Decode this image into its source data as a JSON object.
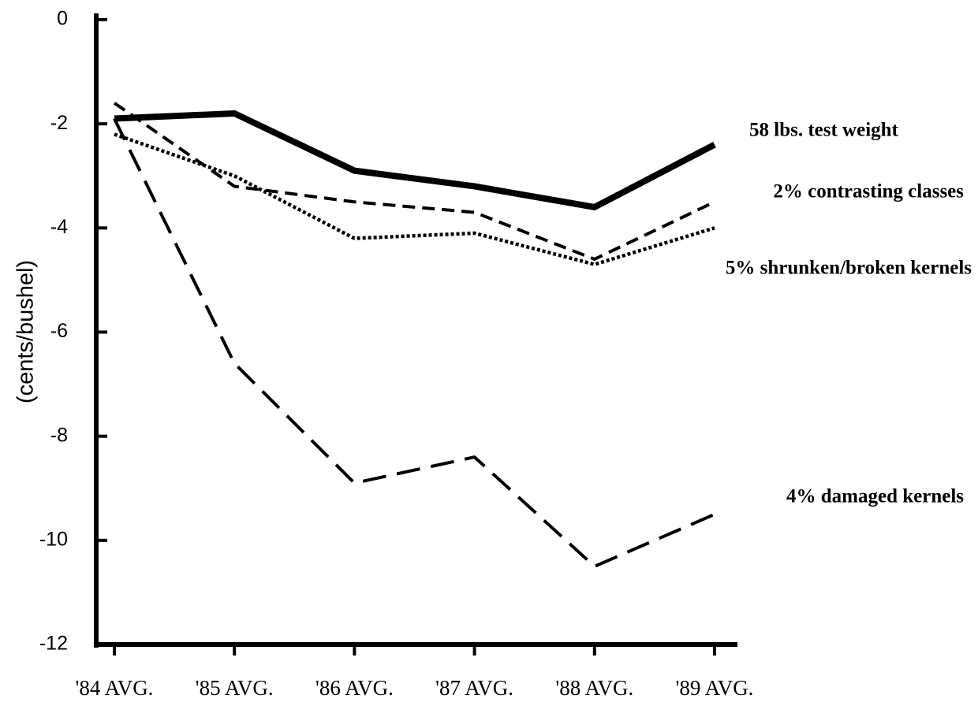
{
  "chart_data": {
    "type": "line",
    "y_label": "(cents/bushel)",
    "categories": [
      "'84 AVG.",
      "'85 AVG.",
      "'86 AVG.",
      "'87 AVG.",
      "'88 AVG.",
      "'89 AVG."
    ],
    "ylim": [
      -12,
      0
    ],
    "yticks": [
      0,
      -2,
      -4,
      -6,
      -8,
      -10,
      -12
    ],
    "series": [
      {
        "name": "58 lbs. test weight",
        "color": "#000000",
        "dash": "solid",
        "values": [
          -1.9,
          -1.8,
          -2.9,
          -3.2,
          -3.6,
          -2.4
        ]
      },
      {
        "name": "2% contrasting classes",
        "color": "#000000",
        "dash": "dashed",
        "values": [
          -1.6,
          -3.2,
          -3.5,
          -3.7,
          -4.6,
          -3.5
        ]
      },
      {
        "name": "5% shrunken/broken kernels",
        "color": "#000000",
        "dash": "dotted",
        "values": [
          -2.2,
          -3.0,
          -4.2,
          -4.1,
          -4.7,
          -4.0
        ]
      },
      {
        "name": "4% damaged kernels",
        "color": "#000000",
        "dash": "longdash",
        "values": [
          -1.9,
          -6.6,
          -8.9,
          -8.4,
          -10.5,
          -9.5
        ]
      }
    ]
  }
}
